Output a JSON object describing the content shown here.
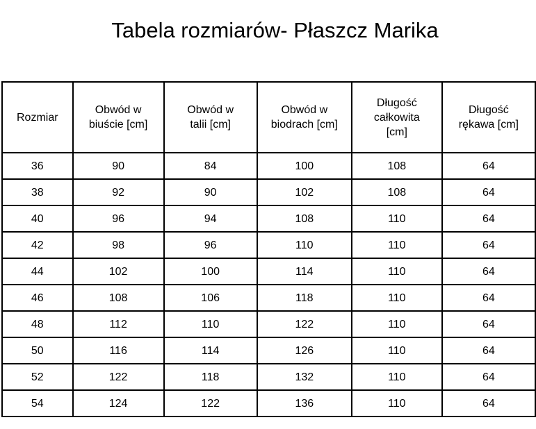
{
  "title": "Tabela rozmiarów- Płaszcz Marika",
  "headers": [
    "Rozmiar",
    "Obwód w biuście [cm]",
    "Obwód w talii [cm]",
    "Obwód w biodrach [cm]",
    "Długość całkowita [cm]",
    "Długość rękawa [cm]"
  ],
  "rows": [
    [
      "36",
      "90",
      "84",
      "100",
      "108",
      "64"
    ],
    [
      "38",
      "92",
      "90",
      "102",
      "108",
      "64"
    ],
    [
      "40",
      "96",
      "94",
      "108",
      "110",
      "64"
    ],
    [
      "42",
      "98",
      "96",
      "110",
      "110",
      "64"
    ],
    [
      "44",
      "102",
      "100",
      "114",
      "110",
      "64"
    ],
    [
      "46",
      "108",
      "106",
      "118",
      "110",
      "64"
    ],
    [
      "48",
      "112",
      "110",
      "122",
      "110",
      "64"
    ],
    [
      "50",
      "116",
      "114",
      "126",
      "110",
      "64"
    ],
    [
      "52",
      "122",
      "118",
      "132",
      "110",
      "64"
    ],
    [
      "54",
      "124",
      "122",
      "136",
      "110",
      "64"
    ]
  ]
}
